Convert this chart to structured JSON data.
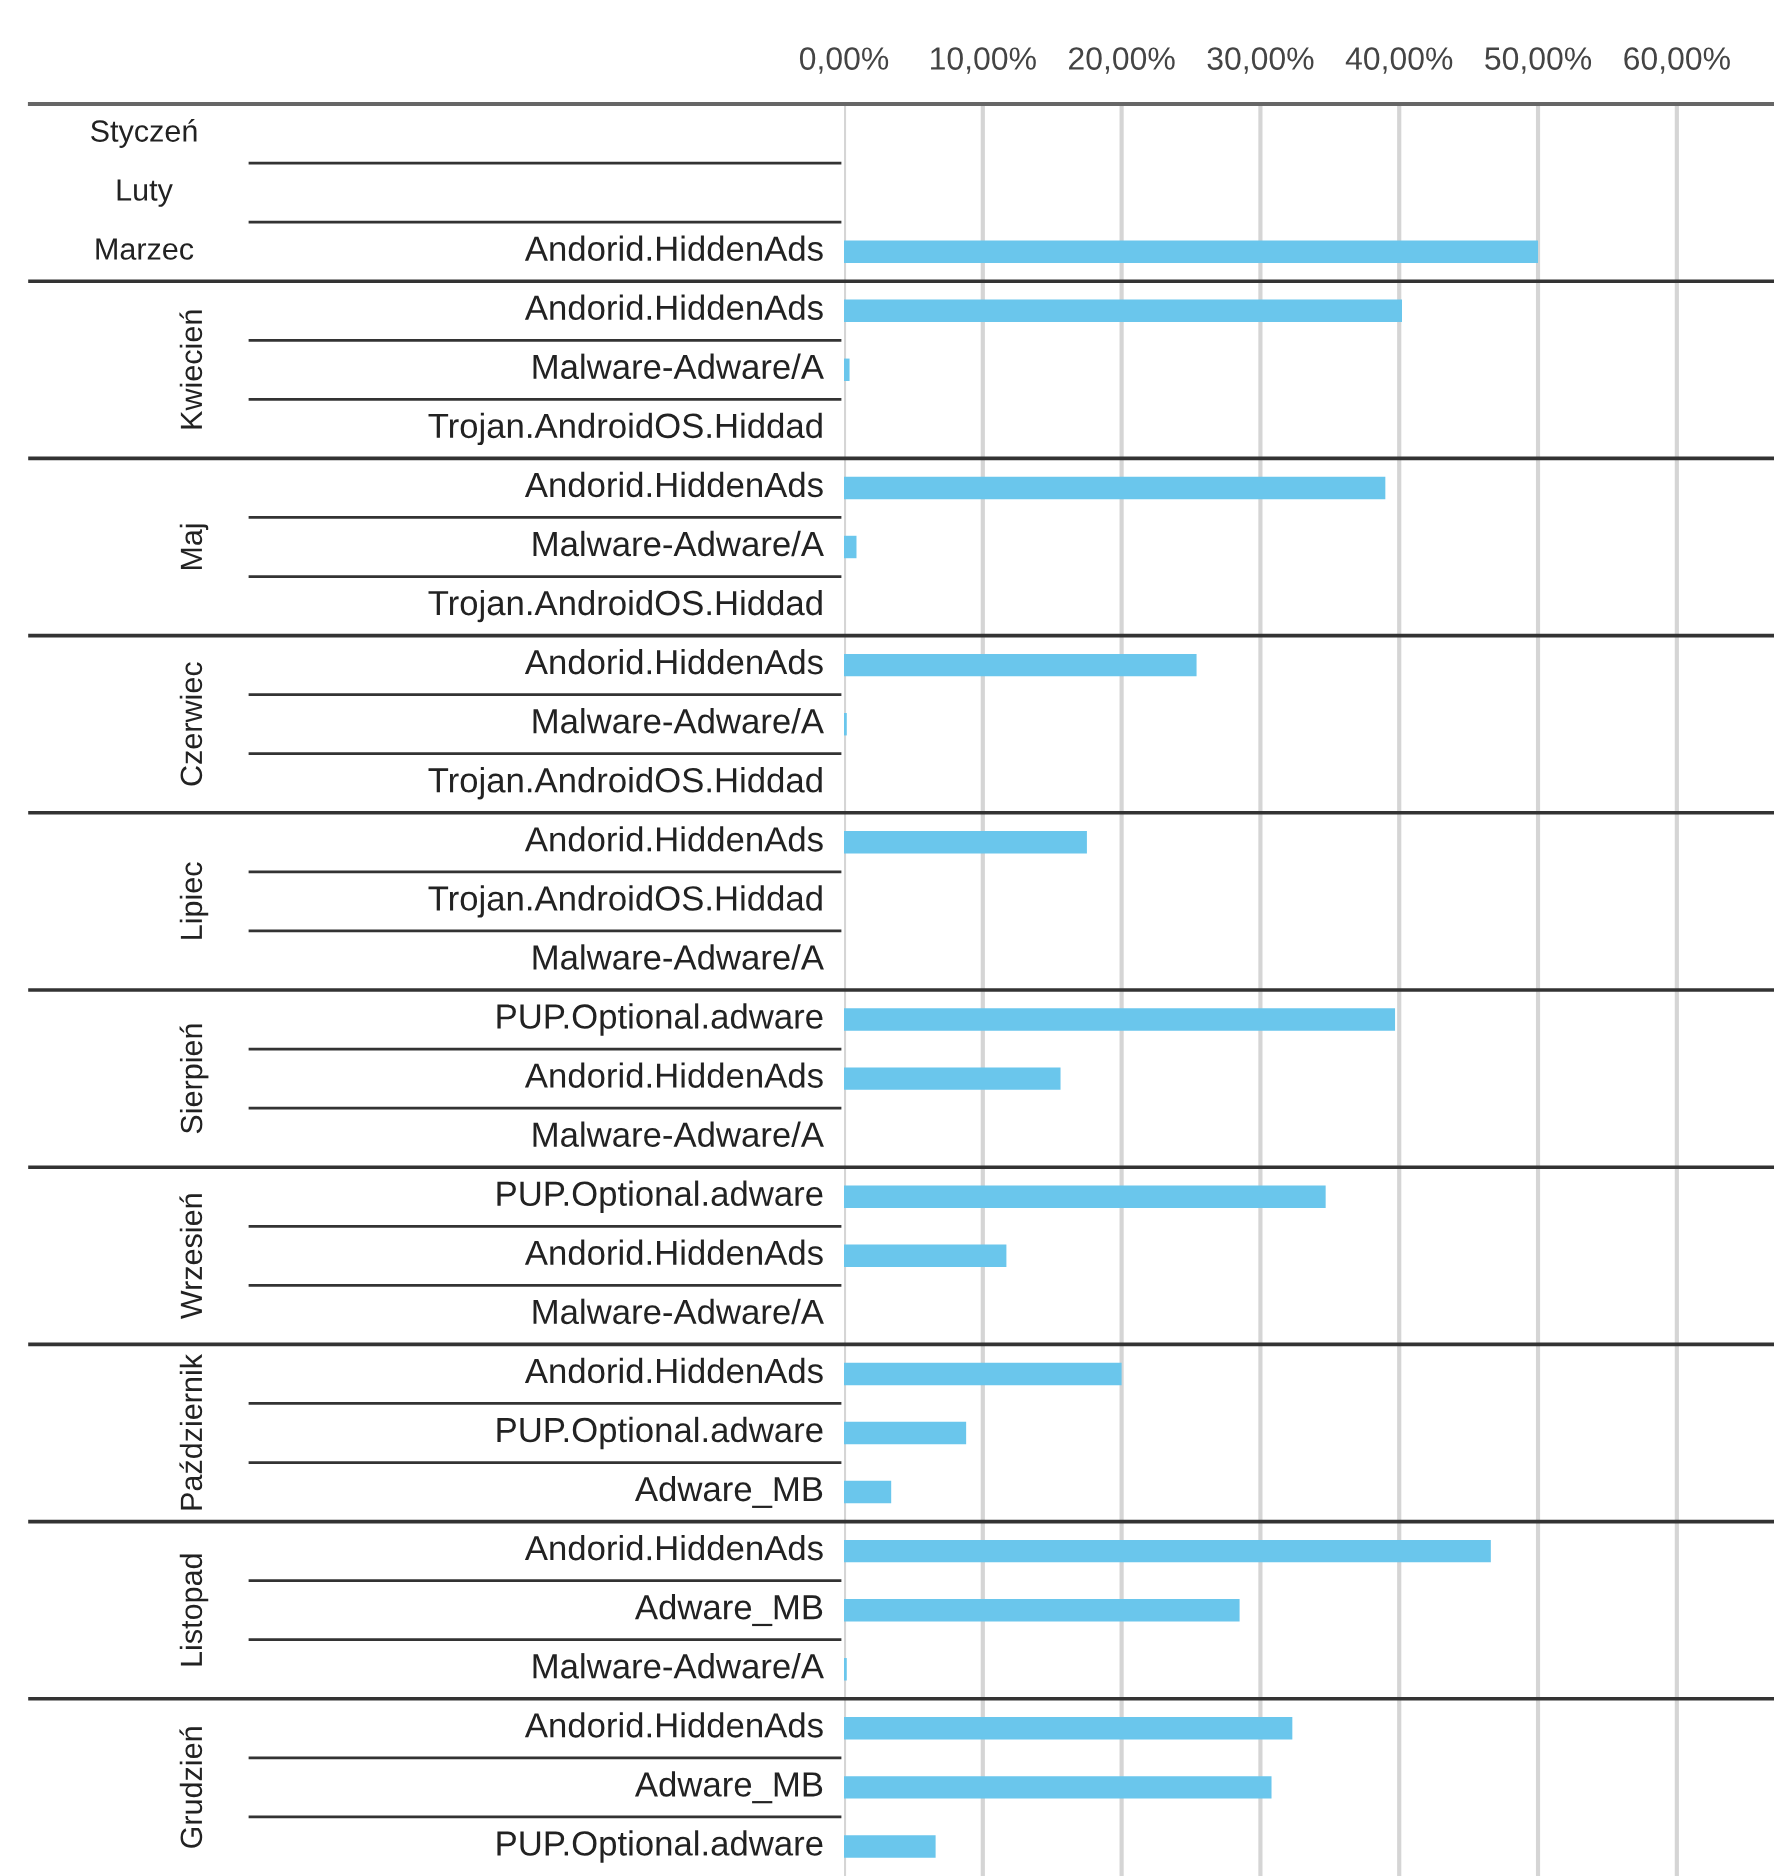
{
  "chart_data": {
    "type": "bar",
    "orientation": "horizontal",
    "categories": [
      null,
      null,
      "Andorid.HiddenAds",
      "Andorid.HiddenAds",
      "Malware-Adware/A",
      "Trojan.AndroidOS.Hiddad",
      "Andorid.HiddenAds",
      "Malware-Adware/A",
      "Trojan.AndroidOS.Hiddad",
      "Andorid.HiddenAds",
      "Malware-Adware/A",
      "Trojan.AndroidOS.Hiddad",
      "Andorid.HiddenAds",
      "Trojan.AndroidOS.Hiddad",
      "Malware-Adware/A",
      "PUP.Optional.adware",
      "Andorid.HiddenAds",
      "Malware-Adware/A",
      "PUP.Optional.adware",
      "Andorid.HiddenAds",
      "Malware-Adware/A",
      "Andorid.HiddenAds",
      "PUP.Optional.adware",
      "Adware_MB",
      "Andorid.HiddenAds",
      "Adware_MB",
      "Malware-Adware/A",
      "Andorid.HiddenAds",
      "Adware_MB",
      "PUP.Optional.adware"
    ],
    "values": [
      null,
      null,
      50.0,
      40.2,
      0.4,
      0,
      39.0,
      0.9,
      0,
      25.4,
      0.2,
      0,
      17.5,
      0,
      0,
      39.7,
      15.6,
      0,
      34.7,
      11.7,
      0,
      20.0,
      8.8,
      3.4,
      46.6,
      28.5,
      0.2,
      32.3,
      30.8,
      6.6
    ],
    "color": "#6ac6ec",
    "xlim": [
      0,
      67
    ],
    "xticks": [
      {
        "value": 0,
        "label": "0,00%"
      },
      {
        "value": 10,
        "label": "10,00%"
      },
      {
        "value": 20,
        "label": "20,00%"
      },
      {
        "value": 30,
        "label": "30,00%"
      },
      {
        "value": 40,
        "label": "40,00%"
      },
      {
        "value": 50,
        "label": "50,00%"
      },
      {
        "value": 60,
        "label": "60,00%"
      }
    ],
    "grid": "x",
    "annotations": [
      "Styczeń",
      "Luty",
      "Marzec",
      "Kwiecień",
      "Maj",
      "Czerwiec",
      "Lipiec",
      "Sierpień",
      "Wrzesień",
      "Październik",
      "Listopad",
      "Grudzień"
    ]
  }
}
